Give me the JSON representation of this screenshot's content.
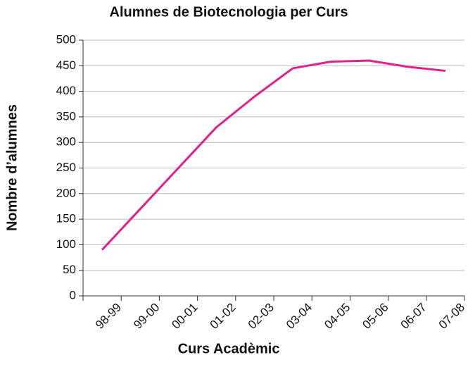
{
  "chart_data": {
    "type": "line",
    "title": "Alumnes de Biotecnologia per Curs",
    "x_label": "Curs Acadèmic",
    "y_label": "Nombre d’alumnes",
    "categories": [
      "98-99",
      "99-00",
      "00-01",
      "01-02",
      "02-03",
      "03-04",
      "04-05",
      "05-06",
      "06-07",
      "07-08"
    ],
    "series": [
      {
        "name": "Alumnes",
        "color": "#e0218a",
        "values": [
          90,
          170,
          250,
          330,
          390,
          445,
          458,
          460,
          448,
          440
        ]
      }
    ],
    "ylim": [
      0,
      500
    ],
    "yticks": [
      0,
      50,
      100,
      150,
      200,
      250,
      300,
      350,
      400,
      450,
      500
    ],
    "grid": true
  }
}
